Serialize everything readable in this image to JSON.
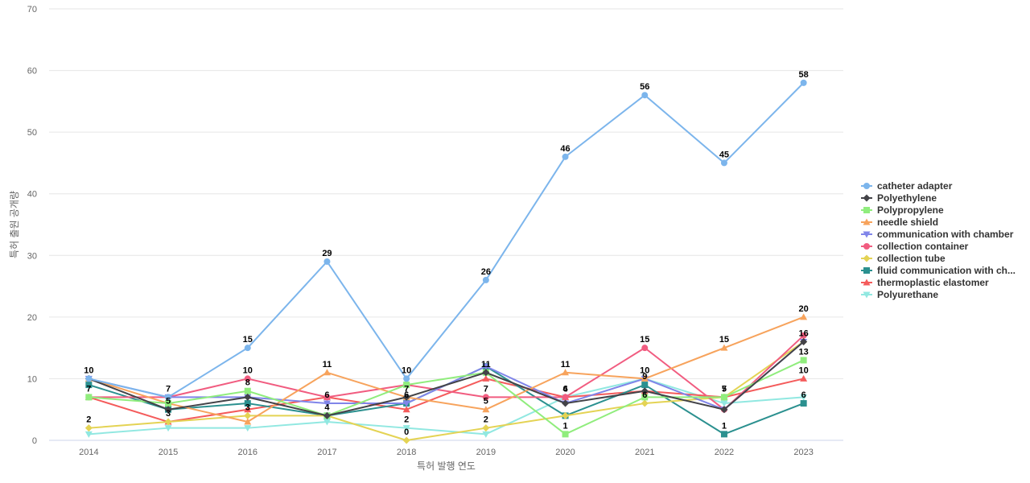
{
  "chart_data": {
    "type": "line",
    "title": "",
    "xlabel": "특허 발행 연도",
    "ylabel": "특허 출원 공개량",
    "ylim": [
      0,
      70
    ],
    "yticks": [
      0,
      10,
      20,
      30,
      40,
      50,
      60,
      70
    ],
    "grid": true,
    "legend_position": "right",
    "x": [
      "2014",
      "2015",
      "2016",
      "2017",
      "2018",
      "2019",
      "2020",
      "2021",
      "2022",
      "2023"
    ],
    "series": [
      {
        "name": "catheter adapter",
        "color": "#7cb5ec",
        "marker": "circle",
        "values": [
          10,
          7,
          15,
          29,
          10,
          26,
          46,
          56,
          45,
          58
        ]
      },
      {
        "name": "Polyethylene",
        "color": "#434348",
        "marker": "diamond",
        "values": [
          10,
          5,
          7,
          4,
          7,
          11,
          6,
          8,
          5,
          16
        ]
      },
      {
        "name": "Polypropylene",
        "color": "#90ed7d",
        "marker": "square",
        "values": [
          7,
          6,
          8,
          4,
          9,
          11,
          1,
          7,
          7,
          13
        ]
      },
      {
        "name": "needle shield",
        "color": "#f7a35c",
        "marker": "triangle",
        "values": [
          10,
          6,
          3,
          11,
          7,
          5,
          11,
          10,
          15,
          20
        ]
      },
      {
        "name": "communication with chamber",
        "color": "#8085e9",
        "marker": "triangle-down",
        "values": [
          10,
          7,
          7,
          6,
          6,
          12,
          6,
          10,
          5,
          16
        ]
      },
      {
        "name": "collection container",
        "color": "#f15c80",
        "marker": "circle",
        "values": [
          7,
          7,
          10,
          7,
          9,
          7,
          7,
          15,
          5,
          17
        ]
      },
      {
        "name": "collection tube",
        "color": "#e4d354",
        "marker": "diamond",
        "values": [
          2,
          3,
          4,
          4,
          0,
          2,
          4,
          6,
          7,
          16
        ]
      },
      {
        "name": "fluid communication with ch...",
        "color": "#2b908f",
        "marker": "square",
        "values": [
          9,
          5,
          6,
          4,
          6,
          12,
          4,
          9,
          1,
          6
        ]
      },
      {
        "name": "thermoplastic elastomer",
        "color": "#f45b5b",
        "marker": "triangle",
        "values": [
          7,
          3,
          5,
          7,
          5,
          10,
          7,
          8,
          7,
          10
        ]
      },
      {
        "name": "Polyurethane",
        "color": "#91e8e1",
        "marker": "triangle-down",
        "values": [
          1,
          2,
          2,
          3,
          2,
          1,
          7,
          10,
          6,
          7
        ]
      }
    ],
    "data_labels": [
      {
        "series": 0,
        "index": 0,
        "text": "10"
      },
      {
        "series": 0,
        "index": 1,
        "text": "7"
      },
      {
        "series": 0,
        "index": 2,
        "text": "15"
      },
      {
        "series": 0,
        "index": 3,
        "text": "29"
      },
      {
        "series": 0,
        "index": 4,
        "text": "10"
      },
      {
        "series": 0,
        "index": 5,
        "text": "26"
      },
      {
        "series": 0,
        "index": 6,
        "text": "46"
      },
      {
        "series": 0,
        "index": 7,
        "text": "56"
      },
      {
        "series": 0,
        "index": 8,
        "text": "45"
      },
      {
        "series": 0,
        "index": 9,
        "text": "58"
      },
      {
        "series": 1,
        "index": 1,
        "text": "5"
      },
      {
        "series": 1,
        "index": 4,
        "text": "7"
      },
      {
        "series": 1,
        "index": 9,
        "text": "16"
      },
      {
        "series": 2,
        "index": 2,
        "text": "8"
      },
      {
        "series": 2,
        "index": 5,
        "text": "11"
      },
      {
        "series": 2,
        "index": 6,
        "text": "1"
      },
      {
        "series": 2,
        "index": 9,
        "text": "13"
      },
      {
        "series": 3,
        "index": 3,
        "text": "11"
      },
      {
        "series": 3,
        "index": 5,
        "text": "5"
      },
      {
        "series": 3,
        "index": 6,
        "text": "11"
      },
      {
        "series": 3,
        "index": 8,
        "text": "15"
      },
      {
        "series": 3,
        "index": 9,
        "text": "20"
      },
      {
        "series": 4,
        "index": 3,
        "text": "6"
      },
      {
        "series": 4,
        "index": 7,
        "text": "10"
      },
      {
        "series": 5,
        "index": 2,
        "text": "10"
      },
      {
        "series": 5,
        "index": 5,
        "text": "7"
      },
      {
        "series": 5,
        "index": 6,
        "text": "6"
      },
      {
        "series": 5,
        "index": 7,
        "text": "15"
      },
      {
        "series": 6,
        "index": 0,
        "text": "2"
      },
      {
        "series": 6,
        "index": 2,
        "text": "3"
      },
      {
        "series": 6,
        "index": 4,
        "text": "0"
      },
      {
        "series": 6,
        "index": 5,
        "text": "2"
      },
      {
        "series": 6,
        "index": 7,
        "text": "6"
      },
      {
        "series": 6,
        "index": 8,
        "text": "7"
      },
      {
        "series": 7,
        "index": 3,
        "text": "4"
      },
      {
        "series": 7,
        "index": 4,
        "text": "6"
      },
      {
        "series": 7,
        "index": 7,
        "text": "9"
      },
      {
        "series": 7,
        "index": 8,
        "text": "1"
      },
      {
        "series": 7,
        "index": 9,
        "text": "6"
      },
      {
        "series": 8,
        "index": 0,
        "text": "7"
      },
      {
        "series": 8,
        "index": 1,
        "text": "3"
      },
      {
        "series": 8,
        "index": 6,
        "text": "4"
      },
      {
        "series": 8,
        "index": 8,
        "text": "5"
      },
      {
        "series": 8,
        "index": 9,
        "text": "10"
      },
      {
        "series": 9,
        "index": 4,
        "text": "2"
      }
    ]
  }
}
